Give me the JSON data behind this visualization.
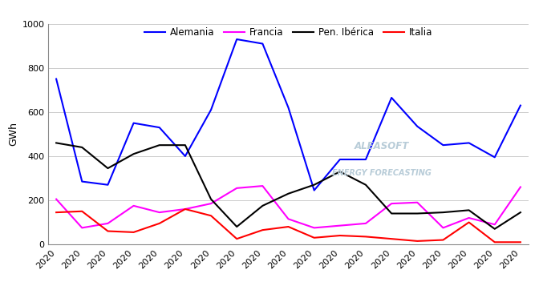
{
  "ylabel": "GWh",
  "series": {
    "Alemania": {
      "color": "#0000FF",
      "values": [
        750,
        285,
        270,
        550,
        530,
        400,
        610,
        930,
        910,
        620,
        245,
        385,
        385,
        665,
        535,
        450,
        460,
        395,
        630
      ]
    },
    "Francia": {
      "color": "#FF00FF",
      "values": [
        205,
        75,
        95,
        175,
        145,
        160,
        185,
        255,
        265,
        115,
        75,
        85,
        95,
        185,
        190,
        75,
        120,
        90,
        260
      ]
    },
    "Pen. Ibérica": {
      "color": "#000000",
      "values": [
        460,
        440,
        345,
        410,
        450,
        450,
        205,
        80,
        175,
        230,
        270,
        330,
        270,
        140,
        140,
        145,
        155,
        70,
        145
      ]
    },
    "Italia": {
      "color": "#FF0000",
      "values": [
        145,
        150,
        60,
        55,
        95,
        160,
        130,
        25,
        65,
        80,
        30,
        40,
        35,
        25,
        15,
        20,
        100,
        10,
        10
      ]
    }
  },
  "ylim": [
    0,
    1000
  ],
  "yticks": [
    0,
    200,
    400,
    600,
    800,
    1000
  ],
  "n_points": 19,
  "background_color": "#FFFFFF",
  "watermark_line1": "ALEASOFT",
  "watermark_line2": "ENERGY FORECASTING",
  "watermark_color": "#B8CCD8"
}
